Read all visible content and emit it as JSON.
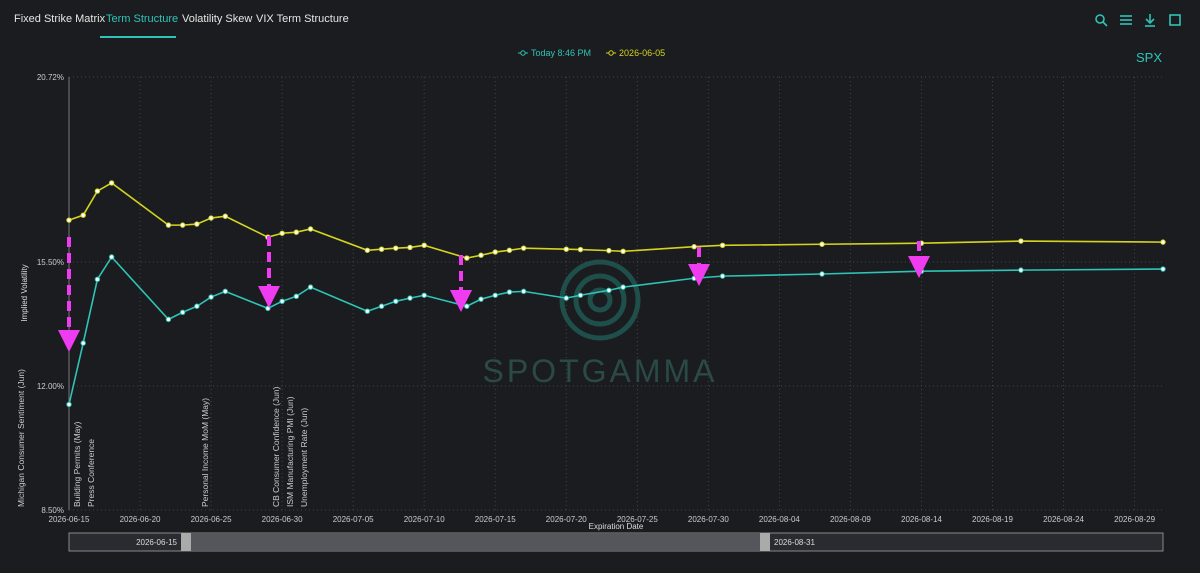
{
  "tabs": [
    "Fixed Strike Matrix",
    "Term Structure",
    "Volatility Skew",
    "VIX Term Structure"
  ],
  "watermark": "SPOTGAMMA",
  "symbol": "SPX",
  "range_slider": {
    "start": "2026-06-15",
    "end": "2026-08-31"
  },
  "events": [
    "Michigan Consumer Sentiment (Jun)",
    "Building Permits (May)",
    "Press Conference",
    "Personal Income MoM (May)",
    "CB Consumer Confidence (Jun)",
    "ISM Manufacturing PMI (Jun)",
    "Unemployment Rate (Jun)"
  ],
  "chart_data": {
    "type": "line",
    "x_label": "Expiration Date",
    "y_label": "Implied Volatility",
    "x": [
      "2026-06-15",
      "2026-06-16",
      "2026-06-17",
      "2026-06-18",
      "2026-06-22",
      "2026-06-23",
      "2026-06-24",
      "2026-06-25",
      "2026-06-26",
      "2026-06-29",
      "2026-06-30",
      "2026-07-01",
      "2026-07-02",
      "2026-07-06",
      "2026-07-07",
      "2026-07-08",
      "2026-07-09",
      "2026-07-10",
      "2026-07-13",
      "2026-07-14",
      "2026-07-15",
      "2026-07-16",
      "2026-07-17",
      "2026-07-20",
      "2026-07-21",
      "2026-07-23",
      "2026-07-24",
      "2026-07-29",
      "2026-07-31",
      "2026-08-07",
      "2026-08-14",
      "2026-08-21",
      "2026-08-31"
    ],
    "series": [
      {
        "name": "Today 8:46 PM",
        "color": "#2ec4b6",
        "values": [
          11.48,
          13.21,
          15.01,
          15.64,
          13.88,
          14.08,
          14.25,
          14.51,
          14.67,
          14.19,
          14.39,
          14.53,
          14.79,
          14.11,
          14.25,
          14.39,
          14.48,
          14.56,
          14.25,
          14.45,
          14.56,
          14.65,
          14.67,
          14.48,
          14.56,
          14.7,
          14.79,
          15.04,
          15.1,
          15.16,
          15.24,
          15.27,
          15.3
        ]
      },
      {
        "name": "2026-06-05",
        "color": "#d4d41e",
        "values": [
          16.68,
          16.82,
          17.5,
          17.73,
          16.54,
          16.54,
          16.57,
          16.74,
          16.79,
          16.2,
          16.31,
          16.34,
          16.43,
          15.83,
          15.86,
          15.89,
          15.91,
          15.97,
          15.61,
          15.69,
          15.78,
          15.83,
          15.89,
          15.86,
          15.85,
          15.82,
          15.8,
          15.93,
          15.97,
          16.0,
          16.03,
          16.09,
          16.06
        ]
      }
    ],
    "xlim": [
      "2026-06-15",
      "2026-08-31"
    ],
    "xticks": [
      "2026-06-15",
      "2026-06-20",
      "2026-06-25",
      "2026-06-30",
      "2026-07-05",
      "2026-07-10",
      "2026-07-15",
      "2026-07-20",
      "2026-07-25",
      "2026-07-30",
      "2026-08-04",
      "2026-08-09",
      "2026-08-14",
      "2026-08-19",
      "2026-08-24",
      "2026-08-29"
    ],
    "ylim": [
      8.5,
      20.72
    ],
    "yticks": [
      {
        "value": 8.5,
        "label": "8.50%"
      },
      {
        "value": 12,
        "label": "12.00%"
      },
      {
        "value": 15.5,
        "label": "15.50%"
      },
      {
        "value": 20.72,
        "label": "20.72%"
      }
    ],
    "grid": true
  }
}
